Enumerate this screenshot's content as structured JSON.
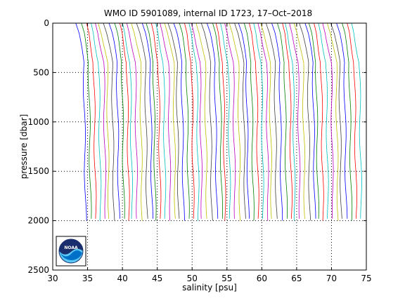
{
  "chart_data": {
    "type": "line",
    "title": "WMO ID 5901089, internal ID 1723, 17–Oct–2018",
    "xlabel": "salinity [psu]",
    "ylabel": "pressure [dbar]",
    "xlim": [
      30,
      75
    ],
    "ylim": [
      0,
      2500
    ],
    "y_reversed": true,
    "xticks": [
      "30",
      "35",
      "40",
      "45",
      "50",
      "55",
      "60",
      "65",
      "70",
      "75"
    ],
    "yticks": [
      "0",
      "500",
      "1000",
      "1500",
      "2000",
      "2500"
    ],
    "grid": true,
    "grid_style": "dotted",
    "profiles": {
      "count": 60,
      "base_salinity_start": 33.3,
      "salinity_offset_step": 0.667,
      "pressure_max": 2000,
      "colors": [
        "#0000ff",
        "#008000",
        "#ff0000",
        "#00bfbf",
        "#bf00bf",
        "#bfbf00",
        "#404040"
      ]
    }
  },
  "logo": {
    "text": "NOAA",
    "colors": {
      "navy": "#1a2e6e",
      "blue": "#0070c8",
      "sky": "#5bc8f5"
    }
  }
}
